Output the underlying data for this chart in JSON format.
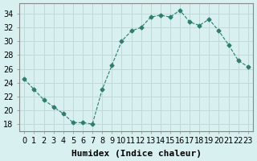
{
  "x": [
    0,
    1,
    2,
    3,
    4,
    5,
    6,
    7,
    8,
    9,
    10,
    11,
    12,
    13,
    14,
    15,
    16,
    17,
    18,
    19,
    20,
    21,
    22,
    23
  ],
  "y": [
    24.5,
    23.0,
    21.5,
    20.5,
    19.5,
    18.2,
    18.2,
    18.0,
    23.0,
    26.5,
    30.0,
    31.5,
    32.0,
    33.5,
    33.8,
    33.5,
    34.5,
    32.8,
    32.3,
    33.2,
    31.5,
    29.5,
    27.2,
    26.3
  ],
  "line_color": "#2e7d6e",
  "marker": "D",
  "marker_size": 2.5,
  "line_width": 0.8,
  "bg_color": "#d8f0ef",
  "grid_color": "#c0d8d6",
  "xlabel": "Humidex (Indice chaleur)",
  "ylim": [
    17,
    35.5
  ],
  "xlim": [
    -0.5,
    23.5
  ],
  "yticks": [
    18,
    20,
    22,
    24,
    26,
    28,
    30,
    32,
    34
  ],
  "xticks": [
    0,
    1,
    2,
    3,
    4,
    5,
    6,
    7,
    8,
    9,
    10,
    11,
    12,
    13,
    14,
    15,
    16,
    17,
    18,
    19,
    20,
    21,
    22,
    23
  ],
  "xlabel_fontsize": 8,
  "tick_fontsize": 7
}
